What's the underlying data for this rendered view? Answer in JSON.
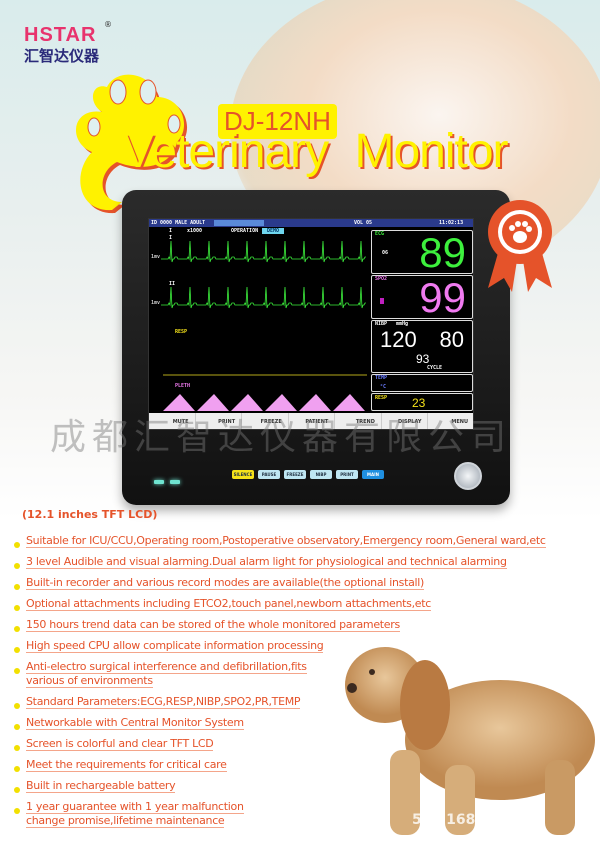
{
  "brand": {
    "name_en": "HSTAR",
    "name_cn": "汇智达仪器",
    "registered": "®"
  },
  "model": "DJ-12NH",
  "title": "Veterinary Monitor",
  "monitor": {
    "topbar": {
      "patient": "ID 0000 MALE ADULT",
      "vol": "VOL 05",
      "time": "11:02:13"
    },
    "subbar": {
      "lead": "I",
      "gain": "x1000",
      "mode": "OPERATION",
      "demo": "DEMO"
    },
    "waves": {
      "lead1": "I",
      "lead2": "II",
      "resp": "RESP",
      "pleth": "PLETH",
      "scale": "1mv"
    },
    "ecg": {
      "label": "ECG",
      "sub": "06",
      "value": "89",
      "color": "#3df03d"
    },
    "spo2": {
      "label": "SPO2",
      "value": "99",
      "color": "#f07af0"
    },
    "nibp": {
      "label": "NIBP",
      "unit": "mmHg",
      "sys": "120",
      "dia": "80",
      "mean": "93",
      "mode": "CYCLE"
    },
    "temp": {
      "label": "TEMP",
      "unit": "°C"
    },
    "resp": {
      "label": "RESP",
      "value": "23"
    },
    "menu": [
      "MUTE",
      "PRINT",
      "FREEZE",
      "PATIENT",
      "TREND",
      "DISPLAY",
      "MENU"
    ],
    "keys": [
      {
        "label": "SILENCE",
        "color": "#f5e21a"
      },
      {
        "label": "PAUSE",
        "color": "#bfe6f2"
      },
      {
        "label": "FREEZE",
        "color": "#bfe6f2"
      },
      {
        "label": "NIBP",
        "color": "#bfe6f2"
      },
      {
        "label": "PRINT",
        "color": "#bfe6f2"
      },
      {
        "label": "MAIN",
        "color": "#1f8fe0"
      }
    ]
  },
  "watermark": "成都汇智达仪器有限公司",
  "screen_size": "(12.1 inches TFT LCD)",
  "features": [
    "Suitable for ICU/CCU,Operating room,Postoperative observatory,Emergency room,General ward,etc",
    "3 level Audible and visual alarming.Dual alarm light for physiological and technical alarming",
    "Built-in recorder and various record modes are available(the optional install)",
    "Optional attachments including ETCO2,touch panel,newborn attachments,etc",
    "150 hours trend data can be stored of the whole monitored parameters",
    "High speed CPU allow complicate information processing",
    "Anti-electro surgical interference and defibrillation,fits various of environments",
    "Standard Parameters:ECG,RESP,NIBP,SPO2,PR,TEMP",
    "Networkable with Central Monitor System",
    "Screen is colorful and clear TFT LCD",
    "Meet the requirements for critical care",
    "Built in rechargeable battery",
    "1 year guarantee with 1 year malfunction change promise,lifetime maintenance"
  ],
  "photo_watermark": "521 1688",
  "colors": {
    "accent": "#e5532a",
    "yellow": "#fff200",
    "brand_pink": "#e8336d"
  }
}
